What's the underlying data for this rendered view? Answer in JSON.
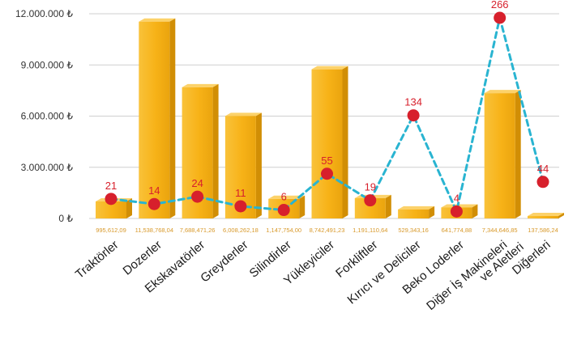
{
  "chart_data": {
    "type": "bar",
    "title": "",
    "xlabel": "",
    "ylabel": "",
    "ylim": [
      0,
      12000000
    ],
    "y_ticks": [
      "0 ₺",
      "3.000.000 ₺",
      "6.000.000 ₺",
      "9.000.000 ₺",
      "12.000.000 ₺"
    ],
    "y_tick_values": [
      0,
      3000000,
      6000000,
      9000000,
      12000000
    ],
    "grid": true,
    "categories": [
      "Traktörler",
      "Dozerler",
      "Ekskavatörler",
      "Greyderler",
      "Silindirler",
      "Yükleyiciler",
      "Forkliftler",
      "Kırıcı ve Deliciler",
      "Beko Loderler",
      "Diğer İş Makineleri ve Aletleri",
      "Diğerleri"
    ],
    "series": [
      {
        "type": "bar",
        "values": [
          995612.09,
          11538768.04,
          7688471.26,
          6008262.18,
          1147754.0,
          8742491.23,
          1191110.64,
          529343.16,
          641774.88,
          7344646.85,
          137586.24
        ],
        "value_labels": [
          "995,612,09",
          "11,538,768,04",
          "7,688,471,26",
          "6,008,262,18",
          "1,147,754,00",
          "8,742,491,23",
          "1,191,110,64",
          "529,343,16",
          "641,774,88",
          "7,344,646,85",
          "137,586,24"
        ],
        "color": "#f7b217"
      },
      {
        "type": "line",
        "values": [
          21,
          14,
          24,
          11,
          6,
          55,
          19,
          134,
          4,
          266,
          44
        ],
        "color": "#d7202c",
        "line_color": "#29b4d1",
        "line_style": "dashed"
      }
    ]
  }
}
